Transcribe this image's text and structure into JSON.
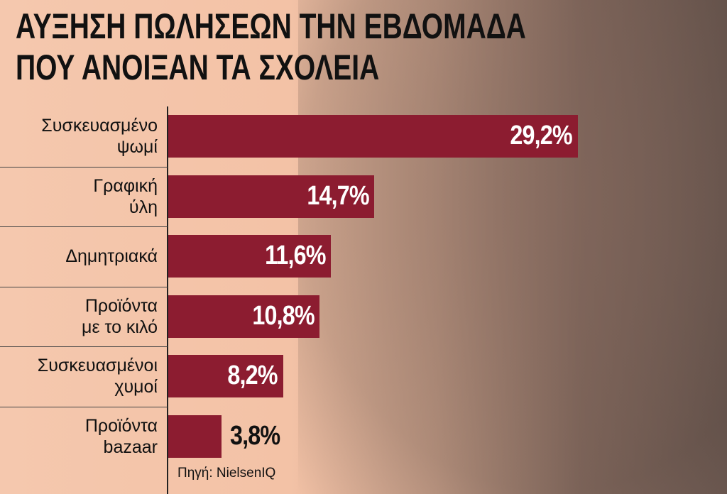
{
  "chart_data": {
    "type": "bar",
    "orientation": "horizontal",
    "title": "ΑΥΞΗΣΗ ΠΩΛΗΣΕΩΝ ΤΗΝ ΕΒΔΟΜΑΔΑ ΠΟΥ ΑΝΟΙΞΑΝ ΤΑ ΣΧΟΛΕΙΑ",
    "categories": [
      "Συσκευασμένο\nψωμί",
      "Γραφική\nύλη",
      "Δημητριακά",
      "Προϊόντα\nμε το κιλό",
      "Συσκευασμένοι\nχυμοί",
      "Προϊόντα\nbazaar"
    ],
    "values": [
      29.2,
      14.7,
      11.6,
      10.8,
      8.2,
      3.8
    ],
    "value_labels": [
      "29,2%",
      "14,7%",
      "11,6%",
      "10,8%",
      "8,2%",
      "3,8%"
    ],
    "color": "#8c1c30",
    "source": "Πηγή: NielsenIQ"
  }
}
